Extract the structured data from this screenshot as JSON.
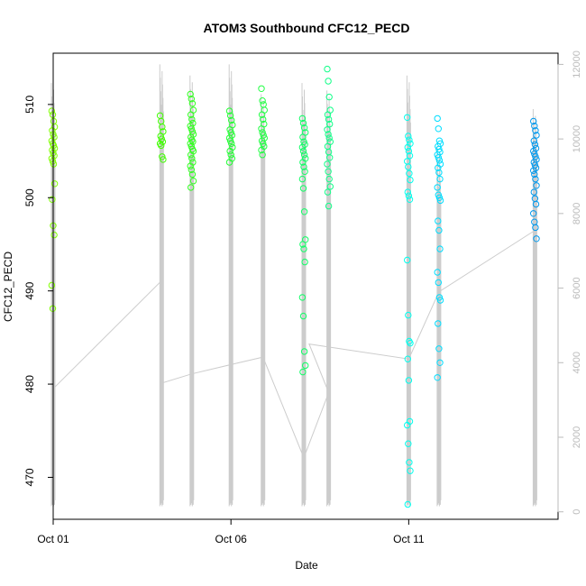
{
  "chart_data": {
    "type": "scatter",
    "title": "ATOM3 Southbound CFC12_PECD",
    "xlabel": "Date",
    "ylabel": "CFC12_PECD",
    "x_unit": "days since Oct 01",
    "xlim": [
      0,
      14.2
    ],
    "ylim": [
      465.5,
      515.5
    ],
    "x_ticks": [
      {
        "value": 0,
        "label": "Oct 01"
      },
      {
        "value": 5,
        "label": "Oct 06"
      },
      {
        "value": 10,
        "label": "Oct 11"
      }
    ],
    "y_ticks": [
      470,
      480,
      490,
      500,
      510
    ],
    "y2_ticks": [
      0,
      2000,
      4000,
      6000,
      8000,
      10000,
      12000
    ],
    "y2lim": [
      -200,
      12300
    ],
    "y2_label": "",
    "scatter_groups": [
      {
        "color": "#80FF00",
        "x": 0.0,
        "values": [
          509.3,
          508.9,
          508.2,
          507.6,
          507.2,
          506.8,
          506.5,
          506.1,
          505.8,
          505.6,
          505.3,
          505.1,
          504.8,
          504.5,
          504.2,
          503.9,
          503.6,
          501.5,
          499.8,
          497.0,
          496.0,
          490.6,
          488.1
        ]
      },
      {
        "color": "#40FF00",
        "x": 3.05,
        "values": [
          508.8,
          508.2,
          507.6,
          507.1,
          506.6,
          506.3,
          506.0,
          505.8,
          505.6,
          504.4,
          504.1
        ]
      },
      {
        "color": "#33FF22",
        "x": 3.9,
        "values": [
          511.1,
          510.6,
          510.1,
          509.4,
          508.9,
          508.4,
          508.0,
          507.7,
          507.4,
          507.1,
          506.8,
          506.5,
          506.2,
          506.0,
          505.8,
          505.5,
          505.2,
          505.0,
          504.6,
          504.2,
          503.8,
          503.4,
          503.0,
          502.5,
          501.8,
          501.1
        ]
      },
      {
        "color": "#22FF33",
        "x": 5.0,
        "values": [
          509.3,
          508.8,
          508.3,
          507.8,
          507.3,
          507.0,
          506.7,
          506.4,
          506.1,
          505.8,
          505.4,
          505.0,
          504.6,
          504.2,
          503.8
        ]
      },
      {
        "color": "#22FF44",
        "x": 5.9,
        "values": [
          511.7,
          510.4,
          510.0,
          509.4,
          508.9,
          508.4,
          507.9,
          507.4,
          507.0,
          506.7,
          506.4,
          506.1,
          505.8,
          505.5,
          505.1,
          504.6
        ]
      },
      {
        "color": "#11FF66",
        "x": 7.05,
        "values": [
          508.5,
          508.0,
          507.5,
          507.0,
          506.5,
          506.0,
          505.7,
          505.4,
          505.0,
          504.6,
          504.2,
          503.8,
          503.3,
          502.8,
          502.0,
          501.0,
          498.5,
          495.5,
          495.0,
          494.5,
          493.1,
          489.3,
          487.3,
          483.5,
          482.0,
          481.3
        ]
      },
      {
        "color": "#11FF88",
        "x": 7.75,
        "values": [
          513.8,
          512.5,
          510.8,
          509.4,
          508.9,
          508.4,
          507.9,
          507.3,
          506.8,
          506.4,
          506.0,
          505.5,
          504.9,
          504.3,
          503.6,
          502.8,
          502.0,
          501.2,
          500.6,
          499.1
        ]
      },
      {
        "color": "#00FFEE",
        "x": 10.0,
        "values": [
          508.6,
          506.6,
          506.2,
          505.8,
          505.4,
          505.0,
          504.5,
          503.9,
          503.3,
          502.6,
          501.9,
          500.6,
          500.2,
          499.8,
          493.3,
          487.4,
          484.6,
          484.4,
          482.7,
          480.4,
          476.0,
          475.6,
          473.6,
          471.6,
          470.7,
          467.1
        ]
      },
      {
        "color": "#00DDFF",
        "x": 10.85,
        "values": [
          508.5,
          507.4,
          506.1,
          505.8,
          505.5,
          505.2,
          504.9,
          504.6,
          504.3,
          504.0,
          503.6,
          503.2,
          502.7,
          502.0,
          501.1,
          500.3,
          500.0,
          499.7,
          497.5,
          496.5,
          494.5,
          492.0,
          490.9,
          489.3,
          489.0,
          486.5,
          483.8,
          482.3,
          480.7
        ]
      },
      {
        "color": "#0099EE",
        "x": 13.55,
        "values": [
          508.2,
          507.7,
          507.2,
          506.7,
          506.1,
          505.7,
          505.3,
          505.0,
          504.7,
          504.4,
          504.1,
          503.8,
          503.5,
          503.2,
          502.9,
          502.5,
          502.0,
          501.3,
          500.6,
          499.9,
          499.3,
          498.3,
          497.4,
          496.8,
          495.6
        ]
      }
    ],
    "secondary_series": [
      {
        "x": 0.0,
        "y2": 3300
      },
      {
        "x": 3.05,
        "y2": 6200
      },
      {
        "x": 3.05,
        "y2": 3450
      },
      {
        "x": 3.9,
        "y2": 3700
      },
      {
        "x": 5.0,
        "y2": 3950
      },
      {
        "x": 5.9,
        "y2": 4150
      },
      {
        "x": 7.05,
        "y2": 1450
      },
      {
        "x": 7.75,
        "y2": 3200
      },
      {
        "x": 7.2,
        "y2": 4500
      },
      {
        "x": 10.0,
        "y2": 4100
      },
      {
        "x": 10.85,
        "y2": 5900
      },
      {
        "x": 13.55,
        "y2": 7550
      }
    ],
    "spike_groups": [
      {
        "x": 0.0,
        "high": 11500
      },
      {
        "x": 3.05,
        "high": 12000
      },
      {
        "x": 3.9,
        "high": 11700
      },
      {
        "x": 5.0,
        "high": 12000
      },
      {
        "x": 5.9,
        "high": 11200
      },
      {
        "x": 7.05,
        "high": 11500
      },
      {
        "x": 7.75,
        "high": 11300
      },
      {
        "x": 10.0,
        "high": 11700
      },
      {
        "x": 10.85,
        "high": 9800
      },
      {
        "x": 13.55,
        "high": 10800
      }
    ]
  },
  "colors": {
    "axis": "#000000",
    "secondary_axis": "#BBBBBB",
    "secondary_line": "#CCCCCC"
  }
}
